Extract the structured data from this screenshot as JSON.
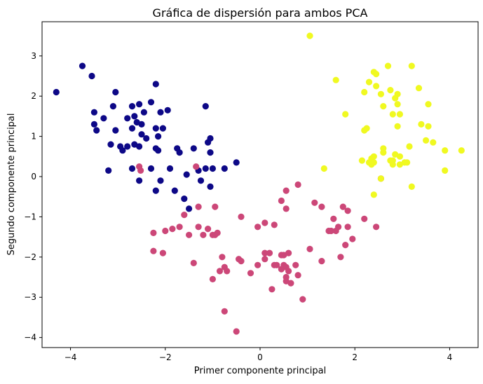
{
  "chart_data": {
    "type": "scatter",
    "title": "Gráfica de dispersión para ambos PCA",
    "xlabel": "Primer componente principal",
    "ylabel": "Segundo componente principal",
    "xlim": [
      -4.6,
      4.6
    ],
    "ylim": [
      -4.25,
      3.85
    ],
    "xticks": [
      -4,
      -2,
      0,
      2,
      4
    ],
    "yticks": [
      -4,
      -3,
      -2,
      -1,
      0,
      1,
      2,
      3
    ],
    "grid": false,
    "series": [
      {
        "color": "#0d0887",
        "points": [
          [
            -4.3,
            2.1
          ],
          [
            -3.75,
            2.75
          ],
          [
            -3.55,
            2.5
          ],
          [
            -3.05,
            2.1
          ],
          [
            -2.2,
            2.3
          ],
          [
            -3.5,
            1.6
          ],
          [
            -3.3,
            1.45
          ],
          [
            -3.1,
            1.75
          ],
          [
            -2.7,
            1.75
          ],
          [
            -2.55,
            1.8
          ],
          [
            -2.45,
            1.6
          ],
          [
            -2.3,
            1.85
          ],
          [
            -2.1,
            1.6
          ],
          [
            -1.95,
            1.65
          ],
          [
            -1.15,
            1.75
          ],
          [
            -3.5,
            1.3
          ],
          [
            -3.45,
            1.15
          ],
          [
            -3.05,
            1.15
          ],
          [
            -2.8,
            1.45
          ],
          [
            -2.65,
            1.5
          ],
          [
            -2.6,
            1.35
          ],
          [
            -2.5,
            1.3
          ],
          [
            -2.2,
            1.2
          ],
          [
            -2.05,
            1.2
          ],
          [
            -2.7,
            1.2
          ],
          [
            -2.5,
            1.05
          ],
          [
            -2.15,
            1.0
          ],
          [
            -2.4,
            0.95
          ],
          [
            -1.05,
            0.95
          ],
          [
            -2.65,
            0.8
          ],
          [
            -3.15,
            0.8
          ],
          [
            -2.95,
            0.75
          ],
          [
            -2.9,
            0.65
          ],
          [
            -2.8,
            0.75
          ],
          [
            -2.55,
            0.75
          ],
          [
            -2.2,
            0.7
          ],
          [
            -2.15,
            0.65
          ],
          [
            -1.75,
            0.7
          ],
          [
            -1.7,
            0.6
          ],
          [
            -1.4,
            0.7
          ],
          [
            -1.05,
            0.6
          ],
          [
            -1.1,
            0.85
          ],
          [
            -0.75,
            0.2
          ],
          [
            -0.5,
            0.35
          ],
          [
            -3.2,
            0.15
          ],
          [
            -2.7,
            0.2
          ],
          [
            -2.3,
            0.2
          ],
          [
            -1.9,
            0.2
          ],
          [
            -1.55,
            0.05
          ],
          [
            -2.55,
            -0.1
          ],
          [
            -2.1,
            -0.1
          ],
          [
            -1.3,
            0.15
          ],
          [
            -1.25,
            -0.1
          ],
          [
            -1.15,
            0.2
          ],
          [
            -2.2,
            -0.35
          ],
          [
            -1.8,
            -0.35
          ],
          [
            -1.05,
            -0.25
          ],
          [
            -1.6,
            -0.55
          ],
          [
            -1.5,
            -0.8
          ],
          [
            -1.0,
            0.2
          ]
        ]
      },
      {
        "color": "#cc4778",
        "points": [
          [
            -2.55,
            0.25
          ],
          [
            -2.52,
            0.15
          ],
          [
            -1.35,
            0.25
          ],
          [
            -1.6,
            -0.95
          ],
          [
            -1.3,
            -0.75
          ],
          [
            -0.95,
            -0.75
          ],
          [
            -0.4,
            -1.0
          ],
          [
            -2.25,
            -1.4
          ],
          [
            -2.0,
            -1.35
          ],
          [
            -1.85,
            -1.3
          ],
          [
            -1.7,
            -1.25
          ],
          [
            -1.3,
            -1.25
          ],
          [
            -1.2,
            -1.45
          ],
          [
            -1.1,
            -1.3
          ],
          [
            -1.0,
            -1.45
          ],
          [
            -0.95,
            -1.45
          ],
          [
            -1.5,
            -1.45
          ],
          [
            -0.9,
            -1.4
          ],
          [
            -2.25,
            -1.85
          ],
          [
            -2.05,
            -1.9
          ],
          [
            -1.4,
            -2.15
          ],
          [
            -0.8,
            -2.0
          ],
          [
            -0.75,
            -2.25
          ],
          [
            -0.7,
            -2.35
          ],
          [
            -0.85,
            -2.35
          ],
          [
            -1.0,
            -2.55
          ],
          [
            -0.45,
            -2.05
          ],
          [
            -0.4,
            -2.1
          ],
          [
            -0.2,
            -2.4
          ],
          [
            -0.05,
            -2.2
          ],
          [
            0.1,
            -1.9
          ],
          [
            0.1,
            -2.05
          ],
          [
            0.3,
            -2.2
          ],
          [
            0.35,
            -2.2
          ],
          [
            0.2,
            -1.9
          ],
          [
            0.45,
            -1.95
          ],
          [
            0.5,
            -2.2
          ],
          [
            0.55,
            -2.25
          ],
          [
            0.45,
            -2.3
          ],
          [
            0.55,
            -2.5
          ],
          [
            0.6,
            -2.35
          ],
          [
            0.5,
            -1.95
          ],
          [
            0.6,
            -1.9
          ],
          [
            0.55,
            -2.6
          ],
          [
            0.65,
            -2.65
          ],
          [
            0.75,
            -2.2
          ],
          [
            0.8,
            -2.45
          ],
          [
            0.25,
            -2.8
          ],
          [
            0.9,
            -3.05
          ],
          [
            -0.75,
            -3.35
          ],
          [
            -0.5,
            -3.85
          ],
          [
            -0.05,
            -1.25
          ],
          [
            0.1,
            -1.15
          ],
          [
            0.3,
            -1.2
          ],
          [
            0.45,
            -0.6
          ],
          [
            0.55,
            -0.35
          ],
          [
            0.55,
            -0.8
          ],
          [
            0.8,
            -0.2
          ],
          [
            1.05,
            -1.8
          ],
          [
            1.15,
            -0.65
          ],
          [
            1.3,
            -0.75
          ],
          [
            1.3,
            -2.1
          ],
          [
            1.45,
            -1.35
          ],
          [
            1.5,
            -1.35
          ],
          [
            1.55,
            -1.05
          ],
          [
            1.6,
            -1.35
          ],
          [
            1.65,
            -1.25
          ],
          [
            1.7,
            -2.0
          ],
          [
            1.75,
            -0.75
          ],
          [
            1.85,
            -1.25
          ],
          [
            1.8,
            -1.7
          ],
          [
            1.85,
            -0.85
          ],
          [
            1.95,
            -1.55
          ],
          [
            2.2,
            -1.05
          ],
          [
            2.45,
            -1.25
          ],
          [
            2.55,
            -0.05
          ]
        ]
      },
      {
        "color": "#f0f921",
        "points": [
          [
            1.05,
            3.5
          ],
          [
            2.4,
            2.6
          ],
          [
            2.45,
            2.55
          ],
          [
            2.7,
            2.75
          ],
          [
            3.2,
            2.75
          ],
          [
            1.6,
            2.4
          ],
          [
            2.3,
            2.35
          ],
          [
            2.45,
            2.25
          ],
          [
            2.55,
            2.05
          ],
          [
            2.75,
            2.15
          ],
          [
            2.9,
            2.05
          ],
          [
            2.2,
            2.1
          ],
          [
            2.85,
            1.95
          ],
          [
            3.35,
            2.2
          ],
          [
            2.9,
            1.8
          ],
          [
            2.6,
            1.75
          ],
          [
            2.8,
            1.55
          ],
          [
            2.95,
            1.55
          ],
          [
            3.55,
            1.8
          ],
          [
            1.8,
            1.55
          ],
          [
            2.25,
            1.2
          ],
          [
            2.2,
            1.15
          ],
          [
            2.9,
            1.25
          ],
          [
            3.4,
            1.3
          ],
          [
            3.55,
            1.25
          ],
          [
            3.5,
            0.9
          ],
          [
            3.65,
            0.85
          ],
          [
            3.9,
            0.65
          ],
          [
            4.25,
            0.65
          ],
          [
            2.6,
            0.7
          ],
          [
            2.6,
            0.6
          ],
          [
            2.85,
            0.55
          ],
          [
            2.95,
            0.5
          ],
          [
            2.8,
            0.4
          ],
          [
            3.15,
            0.75
          ],
          [
            2.15,
            0.4
          ],
          [
            2.3,
            0.35
          ],
          [
            2.35,
            0.45
          ],
          [
            2.4,
            0.35
          ],
          [
            2.4,
            0.5
          ],
          [
            2.75,
            0.4
          ],
          [
            2.8,
            0.3
          ],
          [
            2.95,
            0.3
          ],
          [
            3.05,
            0.35
          ],
          [
            3.1,
            0.35
          ],
          [
            2.35,
            0.3
          ],
          [
            1.35,
            0.2
          ],
          [
            3.9,
            0.15
          ],
          [
            3.2,
            -0.25
          ],
          [
            2.4,
            -0.45
          ],
          [
            2.55,
            -0.05
          ]
        ]
      }
    ]
  }
}
